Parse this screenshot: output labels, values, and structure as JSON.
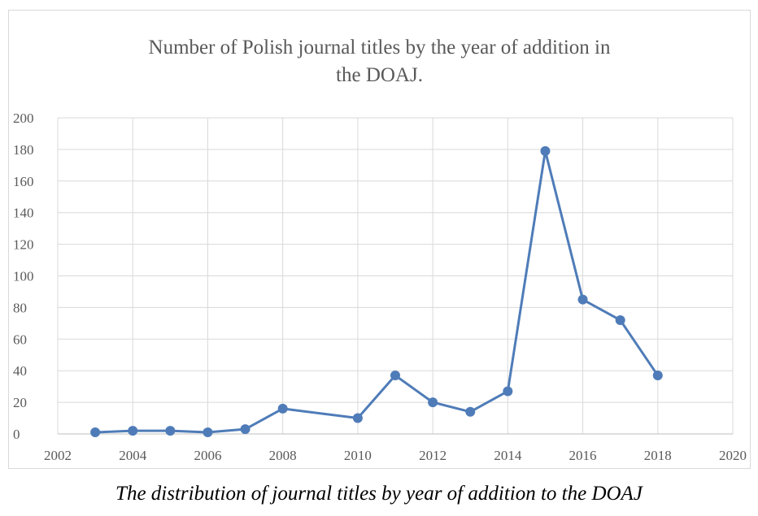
{
  "chart_data": {
    "type": "line",
    "title_lines": [
      "Number of Polish journal titles by the year of addition in",
      "the DOAJ."
    ],
    "xlabel": "",
    "ylabel": "",
    "xlim": [
      2002,
      2020
    ],
    "ylim": [
      0,
      200
    ],
    "x_ticks": [
      "2002",
      "2004",
      "2006",
      "2008",
      "2010",
      "2012",
      "2014",
      "2016",
      "2018",
      "2020"
    ],
    "y_ticks": [
      "0",
      "20",
      "40",
      "60",
      "80",
      "100",
      "120",
      "140",
      "160",
      "180",
      "200"
    ],
    "grid": true,
    "legend": "none",
    "series": [
      {
        "color": "#4f7cb8",
        "x": [
          2003,
          2004,
          2005,
          2006,
          2007,
          2008,
          2010,
          2011,
          2012,
          2013,
          2014,
          2015,
          2016,
          2017,
          2018
        ],
        "y": [
          1,
          2,
          2,
          1,
          3,
          16,
          10,
          37,
          20,
          14,
          27,
          179,
          85,
          72,
          37
        ]
      }
    ]
  },
  "caption": "The distribution of journal titles by year of addition to the DOAJ"
}
